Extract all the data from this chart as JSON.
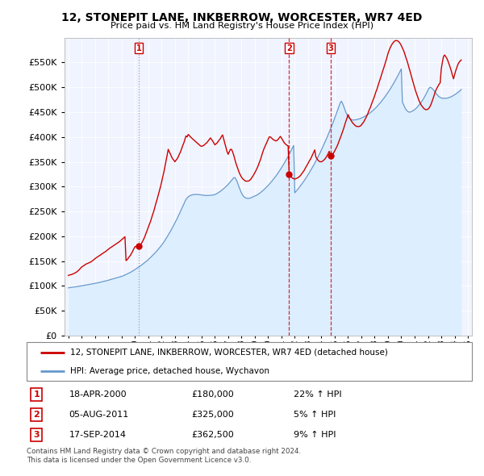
{
  "title": "12, STONEPIT LANE, INKBERROW, WORCESTER, WR7 4ED",
  "subtitle": "Price paid vs. HM Land Registry's House Price Index (HPI)",
  "legend_line1": "12, STONEPIT LANE, INKBERROW, WORCESTER, WR7 4ED (detached house)",
  "legend_line2": "HPI: Average price, detached house, Wychavon",
  "property_color": "#cc0000",
  "hpi_color": "#6699cc",
  "hpi_fill_color": "#ddeeff",
  "purchases": [
    {
      "num": 1,
      "date": "18-APR-2000",
      "price": 180000,
      "pct": "22%",
      "dir": "↑",
      "x_year": 2000.29,
      "linestyle": "dotted"
    },
    {
      "num": 2,
      "date": "05-AUG-2011",
      "price": 325000,
      "pct": "5%",
      "dir": "↑",
      "x_year": 2011.58,
      "linestyle": "dashed"
    },
    {
      "num": 3,
      "date": "17-SEP-2014",
      "price": 362500,
      "pct": "9%",
      "dir": "↑",
      "x_year": 2014.71,
      "linestyle": "dashed"
    }
  ],
  "footer1": "Contains HM Land Registry data © Crown copyright and database right 2024.",
  "footer2": "This data is licensed under the Open Government Licence v3.0.",
  "ylim": [
    0,
    600000
  ],
  "yticks": [
    0,
    50000,
    100000,
    150000,
    200000,
    250000,
    300000,
    350000,
    400000,
    450000,
    500000,
    550000
  ],
  "xlim_left": 1994.7,
  "xlim_right": 2025.3,
  "hpi_x": [
    1995.0,
    1995.08,
    1995.17,
    1995.25,
    1995.33,
    1995.42,
    1995.5,
    1995.58,
    1995.67,
    1995.75,
    1995.83,
    1995.92,
    1996.0,
    1996.08,
    1996.17,
    1996.25,
    1996.33,
    1996.42,
    1996.5,
    1996.58,
    1996.67,
    1996.75,
    1996.83,
    1996.92,
    1997.0,
    1997.08,
    1997.17,
    1997.25,
    1997.33,
    1997.42,
    1997.5,
    1997.58,
    1997.67,
    1997.75,
    1997.83,
    1997.92,
    1998.0,
    1998.08,
    1998.17,
    1998.25,
    1998.33,
    1998.42,
    1998.5,
    1998.58,
    1998.67,
    1998.75,
    1998.83,
    1998.92,
    1999.0,
    1999.08,
    1999.17,
    1999.25,
    1999.33,
    1999.42,
    1999.5,
    1999.58,
    1999.67,
    1999.75,
    1999.83,
    1999.92,
    2000.0,
    2000.08,
    2000.17,
    2000.25,
    2000.33,
    2000.42,
    2000.5,
    2000.58,
    2000.67,
    2000.75,
    2000.83,
    2000.92,
    2001.0,
    2001.08,
    2001.17,
    2001.25,
    2001.33,
    2001.42,
    2001.5,
    2001.58,
    2001.67,
    2001.75,
    2001.83,
    2001.92,
    2002.0,
    2002.08,
    2002.17,
    2002.25,
    2002.33,
    2002.42,
    2002.5,
    2002.58,
    2002.67,
    2002.75,
    2002.83,
    2002.92,
    2003.0,
    2003.08,
    2003.17,
    2003.25,
    2003.33,
    2003.42,
    2003.5,
    2003.58,
    2003.67,
    2003.75,
    2003.83,
    2003.92,
    2004.0,
    2004.08,
    2004.17,
    2004.25,
    2004.33,
    2004.42,
    2004.5,
    2004.58,
    2004.67,
    2004.75,
    2004.83,
    2004.92,
    2005.0,
    2005.08,
    2005.17,
    2005.25,
    2005.33,
    2005.42,
    2005.5,
    2005.58,
    2005.67,
    2005.75,
    2005.83,
    2005.92,
    2006.0,
    2006.08,
    2006.17,
    2006.25,
    2006.33,
    2006.42,
    2006.5,
    2006.58,
    2006.67,
    2006.75,
    2006.83,
    2006.92,
    2007.0,
    2007.08,
    2007.17,
    2007.25,
    2007.33,
    2007.42,
    2007.5,
    2007.58,
    2007.67,
    2007.75,
    2007.83,
    2007.92,
    2008.0,
    2008.08,
    2008.17,
    2008.25,
    2008.33,
    2008.42,
    2008.5,
    2008.58,
    2008.67,
    2008.75,
    2008.83,
    2008.92,
    2009.0,
    2009.08,
    2009.17,
    2009.25,
    2009.33,
    2009.42,
    2009.5,
    2009.58,
    2009.67,
    2009.75,
    2009.83,
    2009.92,
    2010.0,
    2010.08,
    2010.17,
    2010.25,
    2010.33,
    2010.42,
    2010.5,
    2010.58,
    2010.67,
    2010.75,
    2010.83,
    2010.92,
    2011.0,
    2011.08,
    2011.17,
    2011.25,
    2011.33,
    2011.42,
    2011.5,
    2011.58,
    2011.67,
    2011.75,
    2011.83,
    2011.92,
    2012.0,
    2012.08,
    2012.17,
    2012.25,
    2012.33,
    2012.42,
    2012.5,
    2012.58,
    2012.67,
    2012.75,
    2012.83,
    2012.92,
    2013.0,
    2013.08,
    2013.17,
    2013.25,
    2013.33,
    2013.42,
    2013.5,
    2013.58,
    2013.67,
    2013.75,
    2013.83,
    2013.92,
    2014.0,
    2014.08,
    2014.17,
    2014.25,
    2014.33,
    2014.42,
    2014.5,
    2014.58,
    2014.67,
    2014.75,
    2014.83,
    2014.92,
    2015.0,
    2015.08,
    2015.17,
    2015.25,
    2015.33,
    2015.42,
    2015.5,
    2015.58,
    2015.67,
    2015.75,
    2015.83,
    2015.92,
    2016.0,
    2016.08,
    2016.17,
    2016.25,
    2016.33,
    2016.42,
    2016.5,
    2016.58,
    2016.67,
    2016.75,
    2016.83,
    2016.92,
    2017.0,
    2017.08,
    2017.17,
    2017.25,
    2017.33,
    2017.42,
    2017.5,
    2017.58,
    2017.67,
    2017.75,
    2017.83,
    2017.92,
    2018.0,
    2018.08,
    2018.17,
    2018.25,
    2018.33,
    2018.42,
    2018.5,
    2018.58,
    2018.67,
    2018.75,
    2018.83,
    2018.92,
    2019.0,
    2019.08,
    2019.17,
    2019.25,
    2019.33,
    2019.42,
    2019.5,
    2019.58,
    2019.67,
    2019.75,
    2019.83,
    2019.92,
    2020.0,
    2020.08,
    2020.17,
    2020.25,
    2020.33,
    2020.42,
    2020.5,
    2020.58,
    2020.67,
    2020.75,
    2020.83,
    2020.92,
    2021.0,
    2021.08,
    2021.17,
    2021.25,
    2021.33,
    2021.42,
    2021.5,
    2021.58,
    2021.67,
    2021.75,
    2021.83,
    2021.92,
    2022.0,
    2022.08,
    2022.17,
    2022.25,
    2022.33,
    2022.42,
    2022.5,
    2022.58,
    2022.67,
    2022.75,
    2022.83,
    2022.92,
    2023.0,
    2023.08,
    2023.17,
    2023.25,
    2023.33,
    2023.42,
    2023.5,
    2023.58,
    2023.67,
    2023.75,
    2023.83,
    2023.92,
    2024.0,
    2024.08,
    2024.17,
    2024.25,
    2024.33,
    2024.42,
    2024.5
  ],
  "hpi_y": [
    96000,
    96500,
    97000,
    97200,
    97500,
    97800,
    98000,
    98300,
    98700,
    99000,
    99400,
    99800,
    100200,
    100600,
    101000,
    101400,
    101800,
    102200,
    102600,
    103000,
    103400,
    103800,
    104200,
    104600,
    105000,
    105500,
    106000,
    106500,
    107000,
    107500,
    108000,
    108500,
    109000,
    109500,
    110000,
    110800,
    111500,
    112200,
    112900,
    113500,
    114000,
    114700,
    115300,
    115900,
    116500,
    117200,
    117900,
    118600,
    119300,
    120000,
    121000,
    122000,
    123000,
    124000,
    125000,
    126200,
    127400,
    128600,
    130000,
    131500,
    133000,
    134500,
    136000,
    137500,
    139000,
    140500,
    142000,
    143700,
    145400,
    147200,
    149000,
    151000,
    153000,
    155000,
    157200,
    159400,
    161700,
    164000,
    166300,
    168700,
    171200,
    173800,
    176500,
    179200,
    182000,
    185000,
    188300,
    191700,
    195200,
    198800,
    202500,
    206300,
    210200,
    214200,
    218300,
    222500,
    226800,
    231200,
    235700,
    240300,
    245000,
    249800,
    254700,
    259700,
    264800,
    270000,
    274000,
    277000,
    279500,
    281000,
    282000,
    283000,
    283500,
    284000,
    284200,
    284300,
    284200,
    284000,
    283700,
    283300,
    283000,
    282700,
    282400,
    282200,
    282000,
    282000,
    282100,
    282200,
    282400,
    282700,
    283000,
    283400,
    284000,
    285000,
    286200,
    287500,
    289000,
    290600,
    292300,
    294100,
    296000,
    298000,
    300100,
    302300,
    304500,
    307000,
    309600,
    312300,
    315100,
    318000,
    318000,
    315000,
    310000,
    304000,
    298000,
    292000,
    287000,
    283000,
    280000,
    278000,
    277000,
    276500,
    276000,
    276500,
    277000,
    278000,
    279000,
    280000,
    281000,
    282000,
    283000,
    284500,
    286000,
    287800,
    289600,
    291500,
    293500,
    295600,
    297800,
    300000,
    302300,
    304700,
    307200,
    309800,
    312500,
    315300,
    318200,
    321200,
    324300,
    327500,
    330800,
    334200,
    337700,
    341300,
    345000,
    348800,
    352700,
    356700,
    360800,
    365000,
    369300,
    373700,
    378200,
    382800,
    287500,
    290000,
    292600,
    295300,
    298100,
    301000,
    304000,
    307100,
    310300,
    313600,
    317000,
    320500,
    324000,
    327600,
    331300,
    335100,
    339000,
    343000,
    347100,
    351300,
    355600,
    360000,
    364500,
    369100,
    373800,
    378600,
    383500,
    388500,
    393600,
    398800,
    404100,
    409500,
    415000,
    420600,
    426300,
    432100,
    438000,
    444000,
    450100,
    456300,
    462600,
    469000,
    472000,
    468000,
    462000,
    456000,
    450000,
    445000,
    441000,
    438000,
    436000,
    435000,
    434000,
    434000,
    434200,
    434500,
    435000,
    435600,
    436300,
    437100,
    438000,
    439000,
    440100,
    441300,
    442600,
    444000,
    445500,
    447100,
    448800,
    450600,
    452500,
    454500,
    456600,
    458800,
    461100,
    463500,
    466000,
    468600,
    471300,
    474100,
    477000,
    480000,
    483100,
    486300,
    489600,
    493000,
    496500,
    500100,
    503800,
    507600,
    511500,
    515500,
    519600,
    523800,
    528100,
    532500,
    537000,
    470000,
    465000,
    460000,
    456000,
    453000,
    451000,
    450000,
    450000,
    451000,
    452000,
    453500,
    455000,
    457000,
    459000,
    461500,
    464000,
    467000,
    470000,
    473500,
    477000,
    481000,
    485000,
    489500,
    494000,
    498000,
    500000,
    499000,
    497000,
    494500,
    491500,
    488500,
    485500,
    483000,
    481000,
    479500,
    478500,
    478000,
    477800,
    477700,
    477800,
    478000,
    478500,
    479200,
    480000,
    481000,
    482200,
    483600,
    485000,
    486500,
    488000,
    489700,
    491500,
    493400,
    495500,
    497700,
    500000,
    502500,
    505100,
    507900,
    486000,
    484500,
    483000,
    482000,
    481200,
    480700,
    480500
  ],
  "prop_x": [
    1995.0,
    1995.08,
    1995.17,
    1995.25,
    1995.33,
    1995.42,
    1995.5,
    1995.58,
    1995.67,
    1995.75,
    1995.83,
    1995.92,
    1996.0,
    1996.08,
    1996.17,
    1996.25,
    1996.33,
    1996.42,
    1996.5,
    1996.58,
    1996.67,
    1996.75,
    1996.83,
    1996.92,
    1997.0,
    1997.08,
    1997.17,
    1997.25,
    1997.33,
    1997.42,
    1997.5,
    1997.58,
    1997.67,
    1997.75,
    1997.83,
    1997.92,
    1998.0,
    1998.08,
    1998.17,
    1998.25,
    1998.33,
    1998.42,
    1998.5,
    1998.58,
    1998.67,
    1998.75,
    1998.83,
    1998.92,
    1999.0,
    1999.08,
    1999.17,
    1999.25,
    1999.33,
    1999.42,
    1999.5,
    1999.58,
    1999.67,
    1999.75,
    1999.83,
    1999.92,
    2000.0,
    2000.08,
    2000.17,
    2000.25,
    2000.29,
    2000.33,
    2000.42,
    2000.5,
    2000.58,
    2000.67,
    2000.75,
    2000.83,
    2000.92,
    2001.0,
    2001.08,
    2001.17,
    2001.25,
    2001.33,
    2001.42,
    2001.5,
    2001.58,
    2001.67,
    2001.75,
    2001.83,
    2001.92,
    2002.0,
    2002.08,
    2002.17,
    2002.25,
    2002.33,
    2002.42,
    2002.5,
    2002.58,
    2002.67,
    2002.75,
    2002.83,
    2002.92,
    2003.0,
    2003.08,
    2003.17,
    2003.25,
    2003.33,
    2003.42,
    2003.5,
    2003.58,
    2003.67,
    2003.75,
    2003.83,
    2003.92,
    2004.0,
    2004.08,
    2004.17,
    2004.25,
    2004.33,
    2004.42,
    2004.5,
    2004.58,
    2004.67,
    2004.75,
    2004.83,
    2004.92,
    2005.0,
    2005.08,
    2005.17,
    2005.25,
    2005.33,
    2005.42,
    2005.5,
    2005.58,
    2005.67,
    2005.75,
    2005.83,
    2005.92,
    2006.0,
    2006.08,
    2006.17,
    2006.25,
    2006.33,
    2006.42,
    2006.5,
    2006.58,
    2006.67,
    2006.75,
    2006.83,
    2006.92,
    2007.0,
    2007.08,
    2007.17,
    2007.25,
    2007.33,
    2007.42,
    2007.5,
    2007.58,
    2007.67,
    2007.75,
    2007.83,
    2007.92,
    2008.0,
    2008.08,
    2008.17,
    2008.25,
    2008.33,
    2008.42,
    2008.5,
    2008.58,
    2008.67,
    2008.75,
    2008.83,
    2008.92,
    2009.0,
    2009.08,
    2009.17,
    2009.25,
    2009.33,
    2009.42,
    2009.5,
    2009.58,
    2009.67,
    2009.75,
    2009.83,
    2009.92,
    2010.0,
    2010.08,
    2010.17,
    2010.25,
    2010.33,
    2010.42,
    2010.5,
    2010.58,
    2010.67,
    2010.75,
    2010.83,
    2010.92,
    2011.0,
    2011.08,
    2011.17,
    2011.25,
    2011.33,
    2011.42,
    2011.5,
    2011.58,
    2011.67,
    2011.75,
    2011.83,
    2011.92,
    2012.0,
    2012.08,
    2012.17,
    2012.25,
    2012.33,
    2012.42,
    2012.5,
    2012.58,
    2012.67,
    2012.75,
    2012.83,
    2012.92,
    2013.0,
    2013.08,
    2013.17,
    2013.25,
    2013.33,
    2013.42,
    2013.5,
    2013.58,
    2013.67,
    2013.75,
    2013.83,
    2013.92,
    2014.0,
    2014.08,
    2014.17,
    2014.25,
    2014.33,
    2014.42,
    2014.5,
    2014.58,
    2014.71,
    2014.83,
    2014.92,
    2015.0,
    2015.08,
    2015.17,
    2015.25,
    2015.33,
    2015.42,
    2015.5,
    2015.58,
    2015.67,
    2015.75,
    2015.83,
    2015.92,
    2016.0,
    2016.08,
    2016.17,
    2016.25,
    2016.33,
    2016.42,
    2016.5,
    2016.58,
    2016.67,
    2016.75,
    2016.83,
    2016.92,
    2017.0,
    2017.08,
    2017.17,
    2017.25,
    2017.33,
    2017.42,
    2017.5,
    2017.58,
    2017.67,
    2017.75,
    2017.83,
    2017.92,
    2018.0,
    2018.08,
    2018.17,
    2018.25,
    2018.33,
    2018.42,
    2018.5,
    2018.58,
    2018.67,
    2018.75,
    2018.83,
    2018.92,
    2019.0,
    2019.08,
    2019.17,
    2019.25,
    2019.33,
    2019.42,
    2019.5,
    2019.58,
    2019.67,
    2019.75,
    2019.83,
    2019.92,
    2020.0,
    2020.08,
    2020.17,
    2020.25,
    2020.33,
    2020.42,
    2020.5,
    2020.58,
    2020.67,
    2020.75,
    2020.83,
    2020.92,
    2021.0,
    2021.08,
    2021.17,
    2021.25,
    2021.33,
    2021.42,
    2021.5,
    2021.58,
    2021.67,
    2021.75,
    2021.83,
    2021.92,
    2022.0,
    2022.08,
    2022.17,
    2022.25,
    2022.33,
    2022.42,
    2022.5,
    2022.58,
    2022.67,
    2022.75,
    2022.83,
    2022.92,
    2023.0,
    2023.08,
    2023.17,
    2023.25,
    2023.33,
    2023.42,
    2023.5,
    2023.58,
    2023.67,
    2023.75,
    2023.83,
    2023.92,
    2024.0,
    2024.08,
    2024.17,
    2024.25,
    2024.33,
    2024.42,
    2024.5
  ],
  "prop_y": [
    121000,
    122000,
    122500,
    123000,
    124000,
    125000,
    126000,
    127500,
    129000,
    131000,
    133000,
    136000,
    138000,
    139500,
    141000,
    142500,
    144000,
    145000,
    146000,
    147000,
    148000,
    149500,
    151000,
    153000,
    155000,
    156500,
    158000,
    159500,
    161000,
    162500,
    164000,
    165500,
    167000,
    168500,
    170000,
    172000,
    174000,
    175500,
    177000,
    178500,
    180000,
    181500,
    183000,
    184500,
    186000,
    187500,
    189000,
    191000,
    193000,
    195000,
    197000,
    199000,
    151000,
    153000,
    156000,
    159000,
    162000,
    166000,
    170000,
    175000,
    179000,
    179500,
    180000,
    180000,
    180000,
    181000,
    183000,
    186000,
    190000,
    195000,
    200000,
    206000,
    212000,
    218000,
    224000,
    230000,
    237000,
    244000,
    251000,
    259000,
    267000,
    275000,
    283000,
    291000,
    300000,
    309000,
    319000,
    329000,
    340000,
    351000,
    363000,
    375000,
    370000,
    365000,
    360000,
    356000,
    353000,
    350000,
    353000,
    356000,
    360000,
    365000,
    370000,
    376000,
    382000,
    388000,
    395000,
    402000,
    400000,
    405000,
    403000,
    400000,
    398000,
    396000,
    394000,
    392000,
    390000,
    388000,
    386000,
    384000,
    382000,
    381000,
    382000,
    383000,
    385000,
    387000,
    389000,
    392000,
    395000,
    398000,
    395000,
    392000,
    388000,
    384000,
    386000,
    388000,
    391000,
    394000,
    397000,
    401000,
    404000,
    395000,
    387000,
    379000,
    370000,
    365000,
    370000,
    375000,
    375000,
    370000,
    363000,
    355000,
    347000,
    340000,
    334000,
    328000,
    323000,
    319000,
    316000,
    314000,
    312000,
    311000,
    311000,
    311000,
    312000,
    314000,
    317000,
    320000,
    324000,
    328000,
    332000,
    337000,
    342000,
    348000,
    354000,
    361000,
    368000,
    375000,
    380000,
    385000,
    390000,
    395000,
    400000,
    400000,
    398000,
    396000,
    394000,
    393000,
    392000,
    393000,
    395000,
    398000,
    401000,
    398000,
    394000,
    390000,
    387000,
    385000,
    383000,
    382000,
    325000,
    322000,
    319000,
    317000,
    316000,
    315000,
    316000,
    317000,
    318000,
    320000,
    322000,
    325000,
    328000,
    331000,
    335000,
    339000,
    343000,
    347000,
    351000,
    355000,
    359000,
    364000,
    369000,
    374000,
    360000,
    356000,
    353000,
    351000,
    350000,
    350000,
    351000,
    353000,
    355000,
    358000,
    362000,
    366000,
    371000,
    362500,
    365000,
    368000,
    372000,
    376000,
    381000,
    386000,
    392000,
    398000,
    404000,
    410000,
    417000,
    424000,
    431000,
    438000,
    445000,
    440000,
    436000,
    432000,
    429000,
    426000,
    424000,
    422000,
    421000,
    421000,
    421000,
    422000,
    424000,
    427000,
    430000,
    434000,
    438000,
    443000,
    448000,
    454000,
    459000,
    465000,
    471000,
    477000,
    483000,
    490000,
    496000,
    503000,
    510000,
    517000,
    524000,
    531000,
    538000,
    545000,
    552000,
    560000,
    568000,
    574000,
    580000,
    584000,
    588000,
    591000,
    593000,
    594000,
    594000,
    593000,
    591000,
    588000,
    584000,
    579000,
    574000,
    568000,
    561000,
    554000,
    547000,
    539000,
    531000,
    523000,
    515000,
    507000,
    499000,
    492000,
    485000,
    479000,
    473000,
    468000,
    464000,
    461000,
    458000,
    456000,
    455000,
    455000,
    456000,
    458000,
    462000,
    467000,
    473000,
    480000,
    487000,
    493000,
    498000,
    502000,
    506000,
    509000,
    537000,
    550000,
    562000,
    565000,
    562000,
    558000,
    553000,
    547000,
    540000,
    533000,
    525000,
    517000,
    525000,
    533000,
    540000,
    546000,
    550000,
    553000,
    555000,
    555000,
    554000,
    552000,
    549000,
    546000,
    542000,
    538000,
    533000,
    528000,
    524000,
    520000,
    518000
  ]
}
